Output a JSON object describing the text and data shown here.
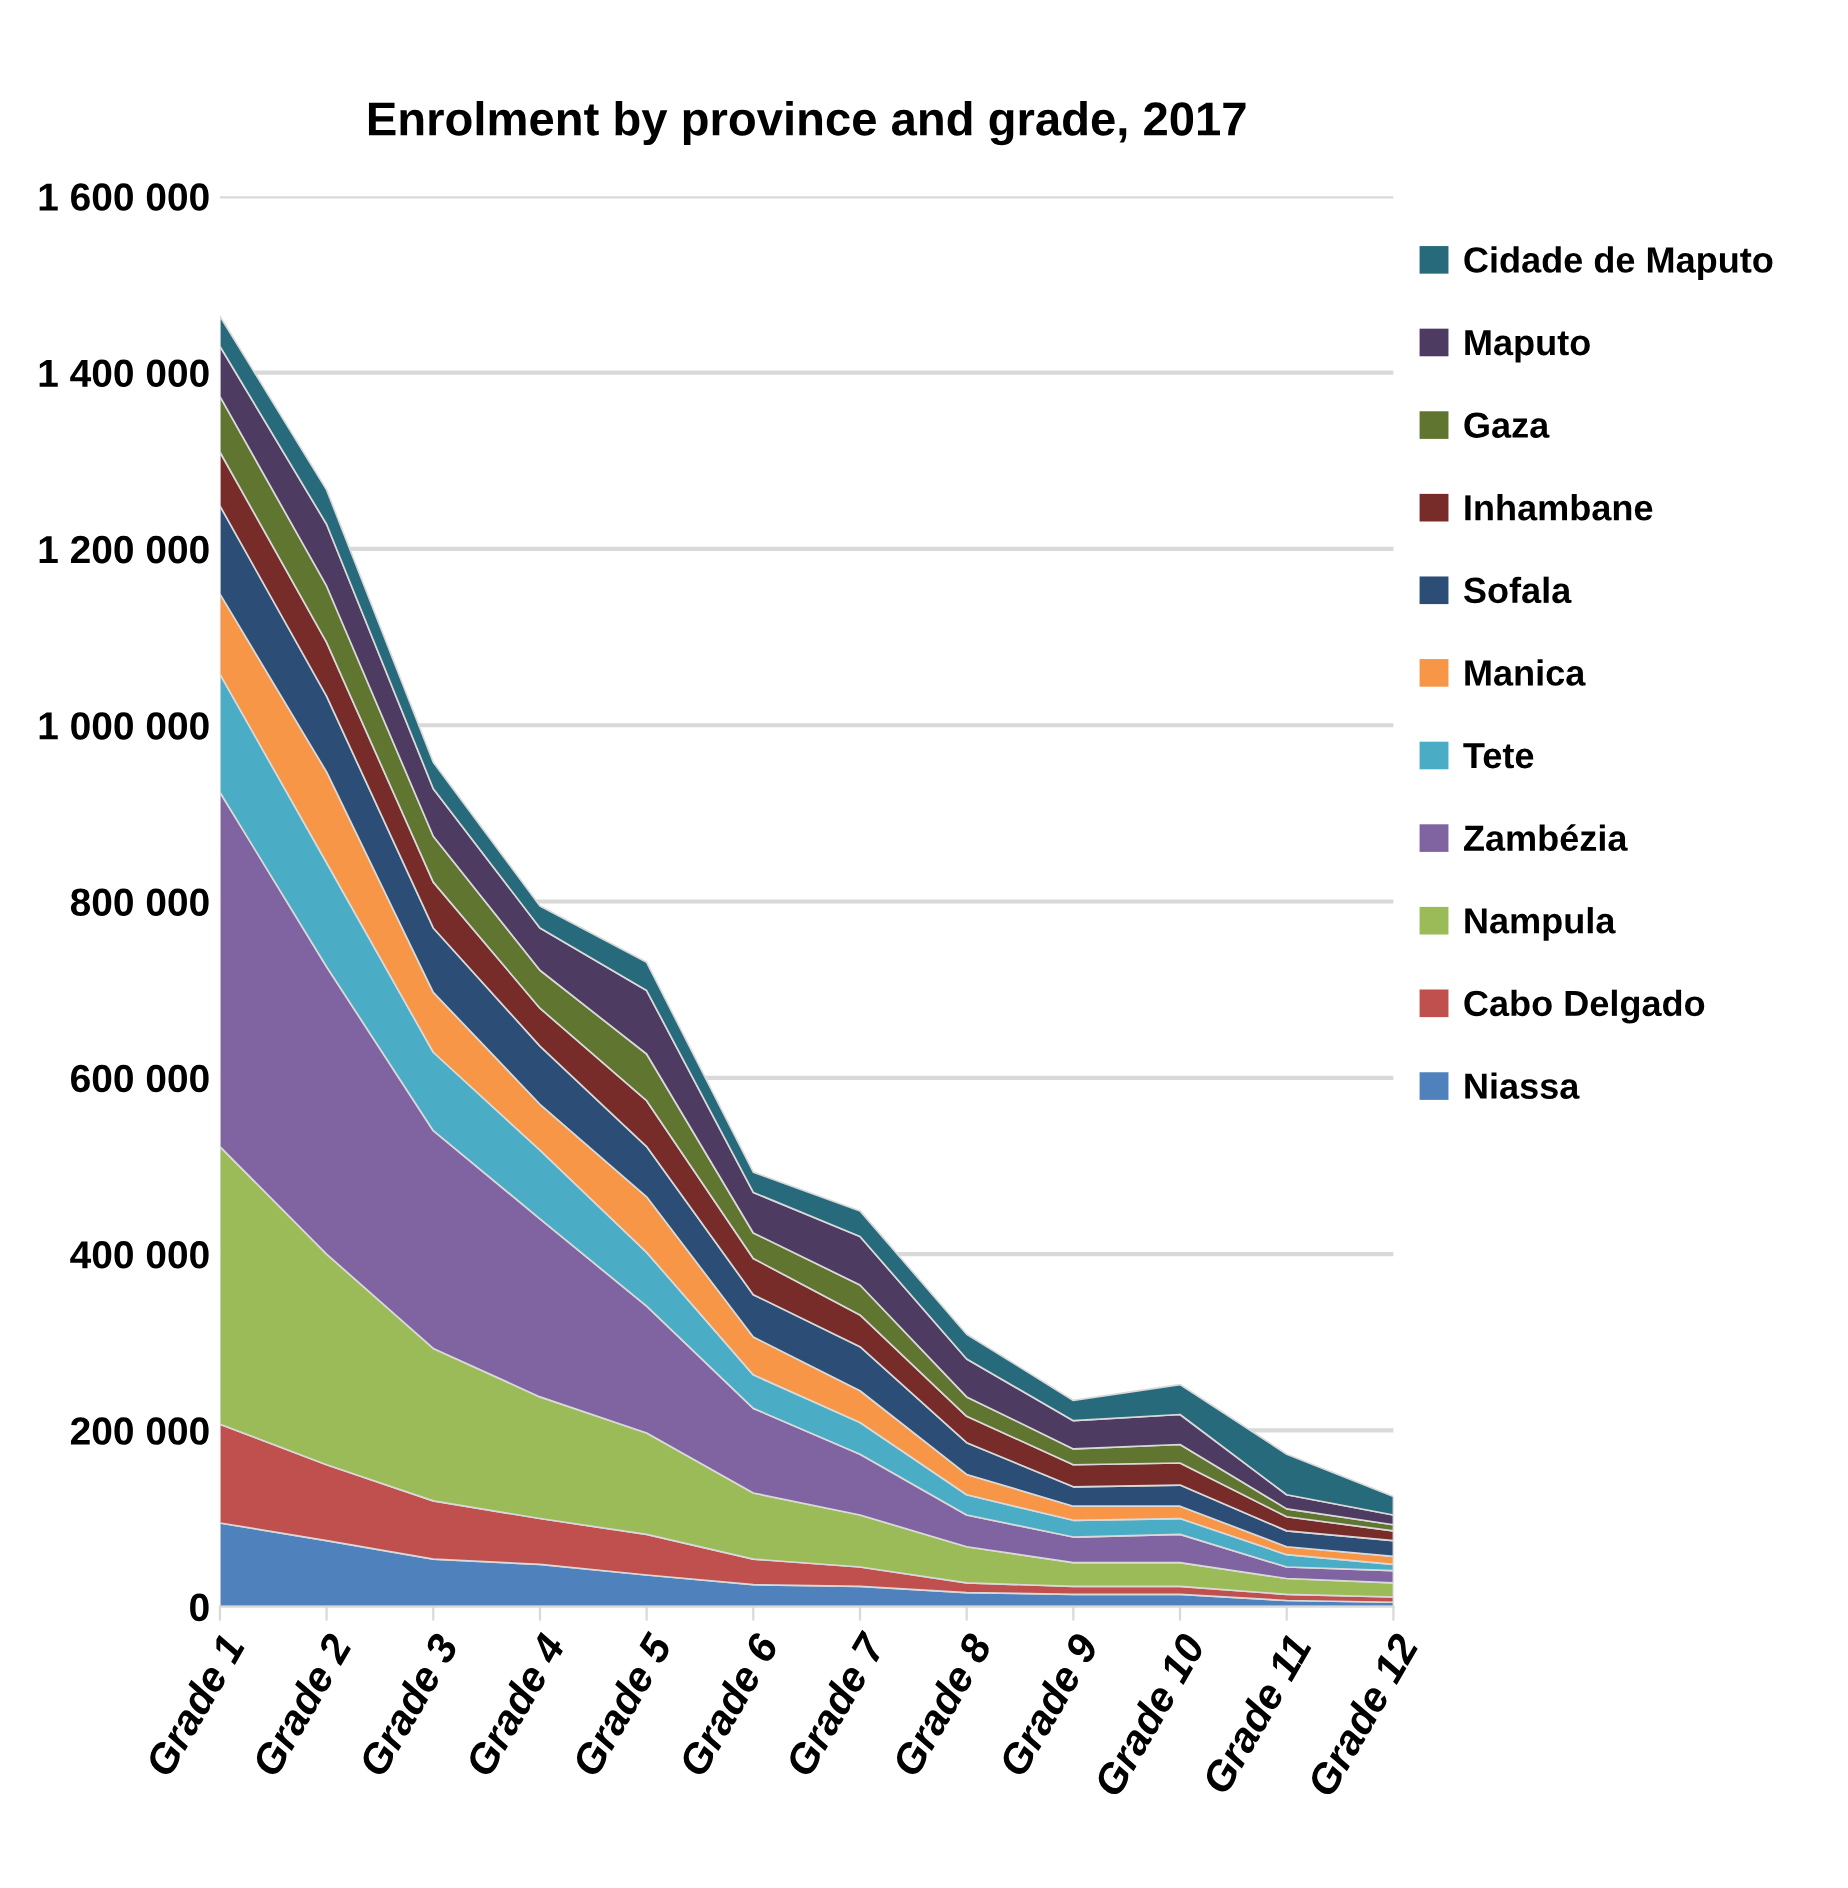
{
  "chart_data": {
    "type": "area",
    "stacked": true,
    "title": "Enrolment by province and grade, 2017",
    "categories": [
      "Grade 1",
      "Grade 2",
      "Grade 3",
      "Grade 4",
      "Grade 5",
      "Grade 6",
      "Grade 7",
      "Grade 8",
      "Grade 9",
      "Grade 10",
      "Grade 11",
      "Grade 12"
    ],
    "ylim": [
      0,
      1600000
    ],
    "yticks": [
      {
        "value": 0,
        "label": "0"
      },
      {
        "value": 200000,
        "label": "200 000"
      },
      {
        "value": 400000,
        "label": "400 000"
      },
      {
        "value": 600000,
        "label": "600 000"
      },
      {
        "value": 800000,
        "label": "800 000"
      },
      {
        "value": 1000000,
        "label": "1 000 000"
      },
      {
        "value": 1200000,
        "label": "1 200 000"
      },
      {
        "value": 1400000,
        "label": "1 400 000"
      },
      {
        "value": 1600000,
        "label": "1 600 000"
      }
    ],
    "grid": "y",
    "legend": "right",
    "series": [
      {
        "name": "Niassa",
        "color": "#4f81bd",
        "values": [
          95000,
          75000,
          54000,
          48000,
          36000,
          25000,
          23000,
          16000,
          14000,
          14000,
          7000,
          5000
        ]
      },
      {
        "name": "Cabo Delgado",
        "color": "#c0504d",
        "values": [
          112000,
          86000,
          66000,
          52000,
          46000,
          29000,
          22000,
          11000,
          9000,
          9000,
          7000,
          6000
        ]
      },
      {
        "name": "Nampula",
        "color": "#9bbb59",
        "values": [
          315000,
          239000,
          173000,
          138000,
          115000,
          75000,
          59000,
          41000,
          27000,
          27000,
          18000,
          16000
        ]
      },
      {
        "name": "Zambézia",
        "color": "#8064a2",
        "values": [
          402000,
          326000,
          247000,
          202000,
          144000,
          96000,
          69000,
          36000,
          29000,
          32000,
          13000,
          14000
        ]
      },
      {
        "name": "Tete",
        "color": "#4bacc6",
        "values": [
          134000,
          118000,
          89000,
          78000,
          61000,
          38000,
          36000,
          23000,
          19000,
          18000,
          14000,
          7000
        ]
      },
      {
        "name": "Manica",
        "color": "#f79646",
        "values": [
          91000,
          103000,
          68000,
          52000,
          63000,
          43000,
          36000,
          23000,
          16000,
          14000,
          9000,
          9000
        ]
      },
      {
        "name": "Sofala",
        "color": "#2c4d75",
        "values": [
          100000,
          86000,
          73000,
          66000,
          57000,
          48000,
          50000,
          36000,
          22000,
          24000,
          18000,
          18000
        ]
      },
      {
        "name": "Inhambane",
        "color": "#772c2a",
        "values": [
          61000,
          61000,
          52000,
          43000,
          52000,
          41000,
          36000,
          30000,
          25000,
          25000,
          16000,
          11000
        ]
      },
      {
        "name": "Gaza",
        "color": "#5f7530",
        "values": [
          63000,
          64000,
          52000,
          43000,
          53000,
          29000,
          34000,
          22000,
          18000,
          21000,
          9000,
          7000
        ]
      },
      {
        "name": "Maputo",
        "color": "#4d3b62",
        "values": [
          57000,
          70000,
          54000,
          48000,
          72000,
          46000,
          55000,
          43000,
          32000,
          34000,
          16000,
          11000
        ]
      },
      {
        "name": "Cidade de Maputo",
        "color": "#276a7c",
        "values": [
          34000,
          39000,
          30000,
          25000,
          32000,
          23000,
          29000,
          28000,
          23000,
          34000,
          46000,
          21000
        ]
      }
    ]
  }
}
